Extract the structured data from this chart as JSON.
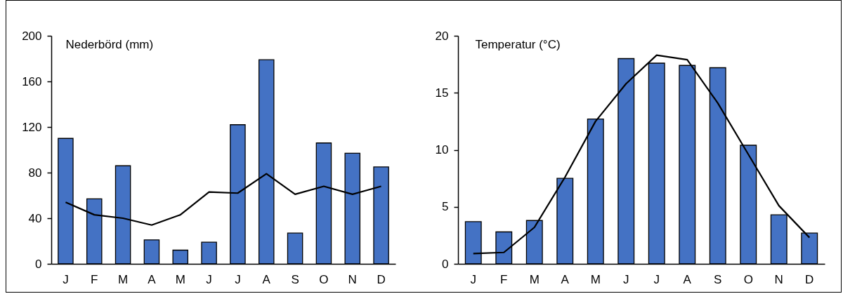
{
  "chart_data": [
    {
      "type": "bar",
      "ylabel": "Nederbörd (mm)",
      "categories": [
        "J",
        "F",
        "M",
        "A",
        "M",
        "J",
        "J",
        "A",
        "S",
        "O",
        "N",
        "D"
      ],
      "ylim": [
        0,
        200
      ],
      "yticks": [
        0,
        40,
        80,
        120,
        160,
        200
      ],
      "series": [
        {
          "color": "#4472c4",
          "values": [
            110,
            57,
            86,
            21,
            12,
            19,
            122,
            179,
            27,
            106,
            97,
            85
          ]
        },
        {
          "type": "line",
          "color": "#000000",
          "values": [
            54,
            43,
            40,
            34,
            43,
            63,
            62,
            79,
            61,
            68,
            61,
            68
          ]
        }
      ]
    },
    {
      "type": "bar",
      "ylabel": "Temperatur (°C)",
      "categories": [
        "J",
        "F",
        "M",
        "A",
        "M",
        "J",
        "J",
        "A",
        "S",
        "O",
        "N",
        "D"
      ],
      "ylim": [
        0,
        20
      ],
      "yticks": [
        0,
        5,
        10,
        15,
        20
      ],
      "series": [
        {
          "color": "#4472c4",
          "values": [
            3.7,
            2.8,
            3.8,
            7.5,
            12.7,
            18.0,
            17.6,
            17.4,
            17.2,
            10.4,
            4.3,
            2.7
          ]
        },
        {
          "type": "line",
          "color": "#000000",
          "values": [
            0.9,
            1.0,
            3.2,
            7.6,
            12.5,
            15.8,
            18.3,
            17.9,
            14.1,
            9.6,
            5.1,
            2.3
          ]
        }
      ]
    }
  ]
}
